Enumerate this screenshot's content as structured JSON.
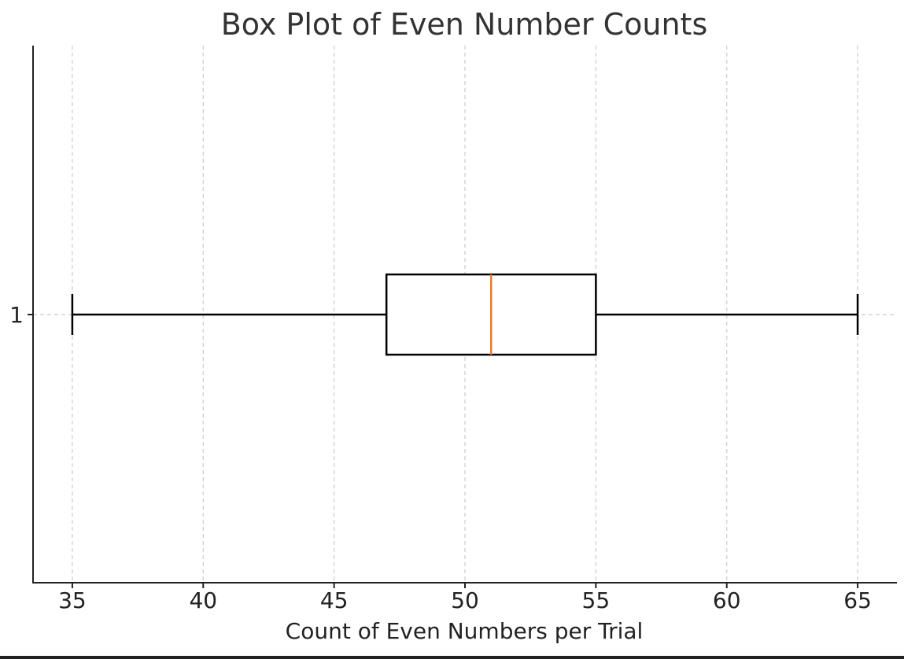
{
  "chart_data": {
    "type": "box",
    "title": "Box Plot of Even Number Counts",
    "xlabel": "Count of Even Numbers per Trial",
    "ylabel": "",
    "orientation": "horizontal",
    "xlim": [
      33.5,
      66.5
    ],
    "x_ticks": [
      35,
      40,
      45,
      50,
      55,
      60,
      65
    ],
    "x_tick_labels": [
      "35",
      "40",
      "45",
      "50",
      "55",
      "60",
      "65"
    ],
    "y_tick_labels": [
      "1"
    ],
    "grid": true,
    "series": [
      {
        "category": "1",
        "whisker_low": 35,
        "q1": 47,
        "median": 51,
        "q3": 55,
        "whisker_high": 65
      }
    ],
    "colors": {
      "box": "#000000",
      "median": "#f07a2a",
      "whisker": "#000000",
      "grid": "#cccccc"
    }
  }
}
